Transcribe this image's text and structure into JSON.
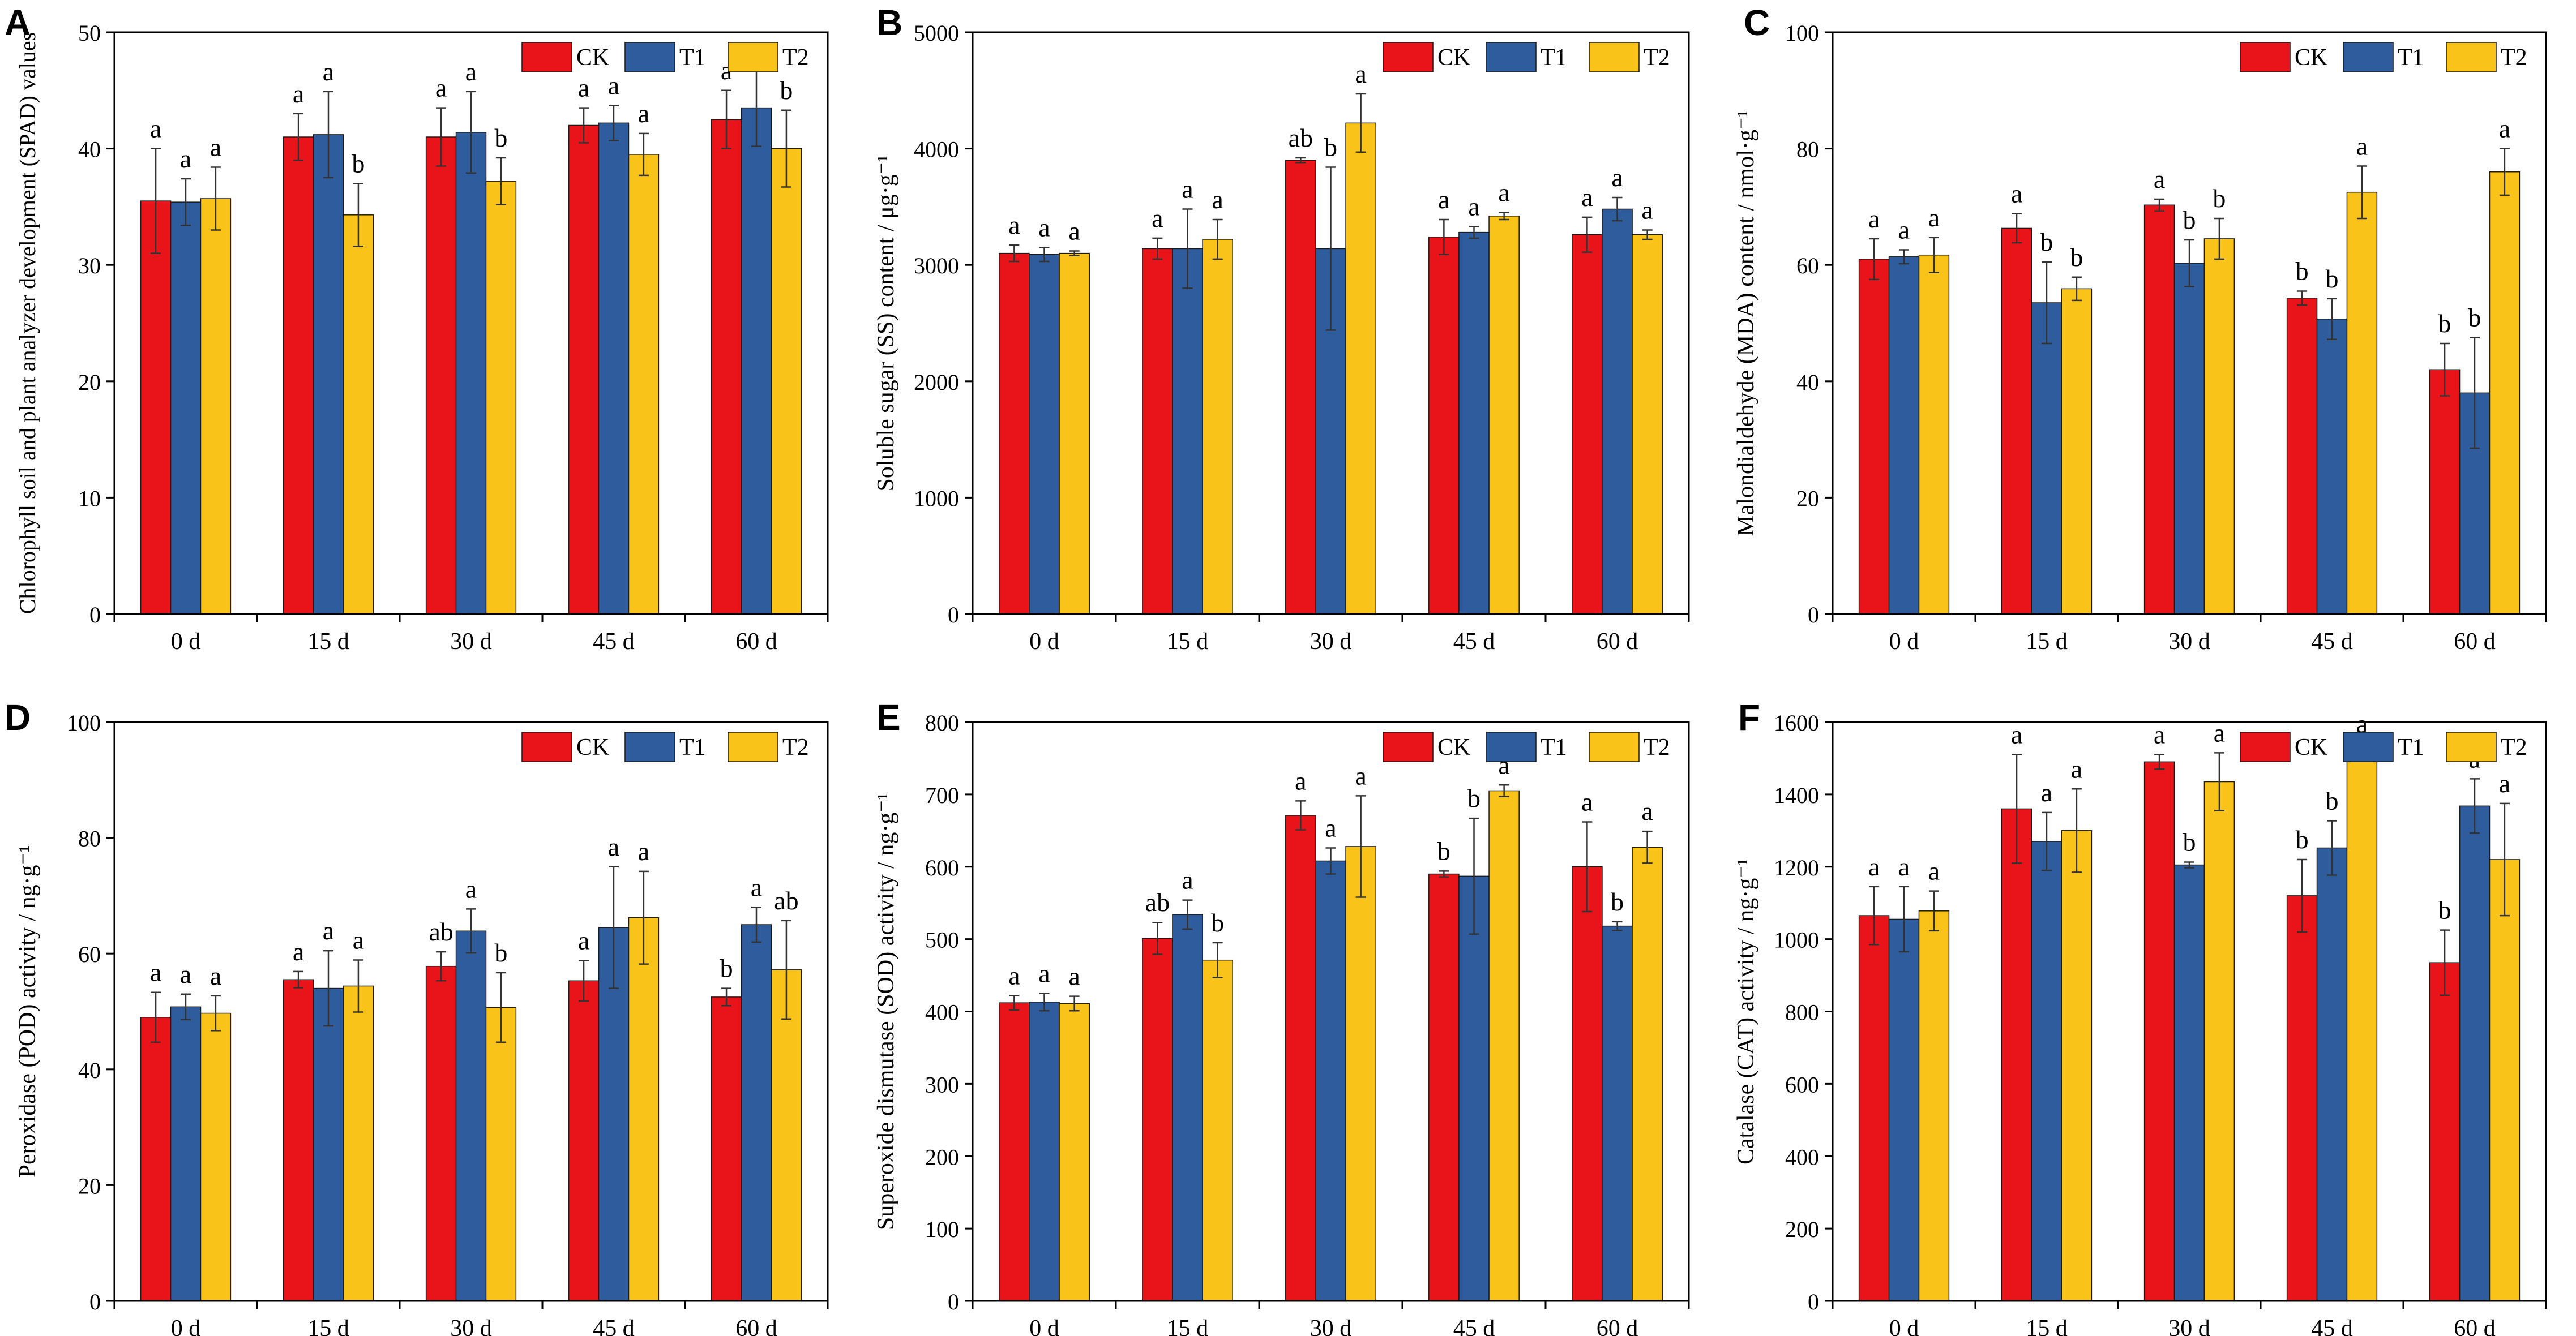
{
  "figure": {
    "colors": {
      "CK": "#e8141a",
      "T1": "#2e5c9c",
      "T2": "#f9c31a"
    }
  },
  "chart_data": [
    {
      "panel": "A",
      "type": "bar",
      "categories": [
        "0 d",
        "15 d",
        "30 d",
        "45 d",
        "60 d"
      ],
      "ylabel": "Chlorophyll soil and plant analyzer development (SPAD) values",
      "ylim": [
        0,
        50
      ],
      "yticks": [
        0,
        10,
        20,
        30,
        40,
        50
      ],
      "legend": [
        "CK",
        "T1",
        "T2"
      ],
      "legend_position": "top-right",
      "series": [
        {
          "name": "CK",
          "values": [
            35.5,
            41.0,
            41.0,
            42.0,
            42.5
          ],
          "errors": [
            4.5,
            2.0,
            2.5,
            1.5,
            2.5
          ],
          "letters": [
            "a",
            "a",
            "a",
            "a",
            "a"
          ]
        },
        {
          "name": "T1",
          "values": [
            35.4,
            41.2,
            41.4,
            42.2,
            43.5
          ],
          "errors": [
            2.0,
            3.7,
            3.5,
            1.5,
            3.3
          ],
          "letters": [
            "a",
            "a",
            "a",
            "a",
            "a"
          ]
        },
        {
          "name": "T2",
          "values": [
            35.7,
            34.3,
            37.2,
            39.5,
            40.0
          ],
          "errors": [
            2.7,
            2.7,
            2.0,
            1.8,
            3.3
          ],
          "letters": [
            "a",
            "b",
            "b",
            "a",
            "b"
          ]
        }
      ]
    },
    {
      "panel": "B",
      "type": "bar",
      "categories": [
        "0 d",
        "15 d",
        "30 d",
        "45 d",
        "60 d"
      ],
      "ylabel": "Soluble sugar (SS) content / μg·g⁻¹",
      "ylim": [
        0,
        5000
      ],
      "yticks": [
        0,
        1000,
        2000,
        3000,
        4000,
        5000
      ],
      "legend": [
        "CK",
        "T1",
        "T2"
      ],
      "legend_position": "top-right",
      "series": [
        {
          "name": "CK",
          "values": [
            3100,
            3140,
            3900,
            3240,
            3260
          ],
          "errors": [
            70,
            90,
            20,
            150,
            150
          ],
          "letters": [
            "a",
            "a",
            "ab",
            "a",
            "a"
          ]
        },
        {
          "name": "T1",
          "values": [
            3090,
            3140,
            3140,
            3280,
            3480
          ],
          "errors": [
            60,
            340,
            700,
            50,
            100
          ],
          "letters": [
            "a",
            "a",
            "b",
            "a",
            "a"
          ]
        },
        {
          "name": "T2",
          "values": [
            3100,
            3220,
            4220,
            3420,
            3260
          ],
          "errors": [
            20,
            170,
            250,
            30,
            40
          ],
          "letters": [
            "a",
            "a",
            "a",
            "a",
            "a"
          ]
        }
      ]
    },
    {
      "panel": "C",
      "type": "bar",
      "categories": [
        "0 d",
        "15 d",
        "30 d",
        "45 d",
        "60 d"
      ],
      "ylabel": "Malondialdehyde (MDA) content / nmol·g⁻¹",
      "ylim": [
        0,
        100
      ],
      "yticks": [
        0,
        20,
        40,
        60,
        80,
        100
      ],
      "legend": [
        "CK",
        "T1",
        "T2"
      ],
      "legend_position": "top-right",
      "series": [
        {
          "name": "CK",
          "values": [
            61.0,
            66.3,
            70.3,
            54.3,
            42.0
          ],
          "errors": [
            3.5,
            2.5,
            1.0,
            1.2,
            4.5
          ],
          "letters": [
            "a",
            "a",
            "a",
            "b",
            "b"
          ]
        },
        {
          "name": "T1",
          "values": [
            61.4,
            53.5,
            60.3,
            50.7,
            38.0
          ],
          "errors": [
            1.2,
            7.0,
            4.0,
            3.5,
            9.5
          ],
          "letters": [
            "a",
            "b",
            "b",
            "b",
            "b"
          ]
        },
        {
          "name": "T2",
          "values": [
            61.7,
            55.9,
            64.5,
            72.5,
            76.0
          ],
          "errors": [
            3.0,
            2.0,
            3.5,
            4.5,
            4.0
          ],
          "letters": [
            "a",
            "b",
            "b",
            "a",
            "a"
          ]
        }
      ]
    },
    {
      "panel": "D",
      "type": "bar",
      "categories": [
        "0 d",
        "15 d",
        "30 d",
        "45 d",
        "60 d"
      ],
      "ylabel": "Peroxidase (POD) activity / ng·g⁻¹",
      "ylim": [
        0,
        100
      ],
      "yticks": [
        0,
        20,
        40,
        60,
        80,
        100
      ],
      "legend": [
        "CK",
        "T1",
        "T2"
      ],
      "legend_position": "top-right",
      "series": [
        {
          "name": "CK",
          "values": [
            49.0,
            55.5,
            57.8,
            55.3,
            52.5
          ],
          "errors": [
            4.3,
            1.4,
            2.5,
            3.5,
            1.5
          ],
          "letters": [
            "a",
            "a",
            "ab",
            "a",
            "b"
          ]
        },
        {
          "name": "T1",
          "values": [
            50.8,
            54.0,
            63.9,
            64.5,
            65.0
          ],
          "errors": [
            2.2,
            6.5,
            3.8,
            10.5,
            3.0
          ],
          "letters": [
            "a",
            "a",
            "a",
            "a",
            "a"
          ]
        },
        {
          "name": "T2",
          "values": [
            49.7,
            54.4,
            50.7,
            66.2,
            57.2
          ],
          "errors": [
            3.0,
            4.5,
            6.0,
            8.0,
            8.5
          ],
          "letters": [
            "a",
            "a",
            "b",
            "a",
            "ab"
          ]
        }
      ]
    },
    {
      "panel": "E",
      "type": "bar",
      "categories": [
        "0 d",
        "15 d",
        "30 d",
        "45 d",
        "60 d"
      ],
      "ylabel": "Superoxide dismutase (SOD) activity / ng·g⁻¹",
      "ylim": [
        0,
        800
      ],
      "yticks": [
        0,
        100,
        200,
        300,
        400,
        500,
        600,
        700,
        800
      ],
      "legend": [
        "CK",
        "T1",
        "T2"
      ],
      "legend_position": "top-right",
      "series": [
        {
          "name": "CK",
          "values": [
            412,
            501,
            671,
            590,
            600
          ],
          "errors": [
            10,
            22,
            20,
            4,
            62
          ],
          "letters": [
            "a",
            "ab",
            "a",
            "b",
            "a"
          ]
        },
        {
          "name": "T1",
          "values": [
            413,
            534,
            608,
            587,
            518
          ],
          "errors": [
            12,
            20,
            18,
            80,
            6
          ],
          "letters": [
            "a",
            "a",
            "a",
            "b",
            "b"
          ]
        },
        {
          "name": "T2",
          "values": [
            411,
            471,
            628,
            705,
            627
          ],
          "errors": [
            10,
            24,
            70,
            8,
            22
          ],
          "letters": [
            "a",
            "b",
            "a",
            "a",
            "a"
          ]
        }
      ]
    },
    {
      "panel": "F",
      "type": "bar",
      "categories": [
        "0 d",
        "15 d",
        "30 d",
        "45 d",
        "60 d"
      ],
      "ylabel": "Catalase (CAT) activity / ng·g⁻¹",
      "ylim": [
        0,
        1600
      ],
      "yticks": [
        0,
        200,
        400,
        600,
        800,
        1000,
        1200,
        1400,
        1600
      ],
      "legend": [
        "CK",
        "T1",
        "T2"
      ],
      "legend_position": "top-right",
      "series": [
        {
          "name": "CK",
          "values": [
            1065,
            1360,
            1490,
            1120,
            935
          ],
          "errors": [
            80,
            150,
            20,
            100,
            90
          ],
          "letters": [
            "a",
            "a",
            "a",
            "b",
            "b"
          ]
        },
        {
          "name": "T1",
          "values": [
            1055,
            1270,
            1205,
            1252,
            1368
          ],
          "errors": [
            90,
            80,
            8,
            75,
            75
          ],
          "letters": [
            "a",
            "a",
            "b",
            "b",
            "a"
          ]
        },
        {
          "name": "T2",
          "values": [
            1078,
            1300,
            1435,
            1520,
            1220
          ],
          "errors": [
            55,
            115,
            80,
            20,
            155
          ],
          "letters": [
            "a",
            "a",
            "a",
            "a",
            "a"
          ]
        }
      ]
    }
  ]
}
